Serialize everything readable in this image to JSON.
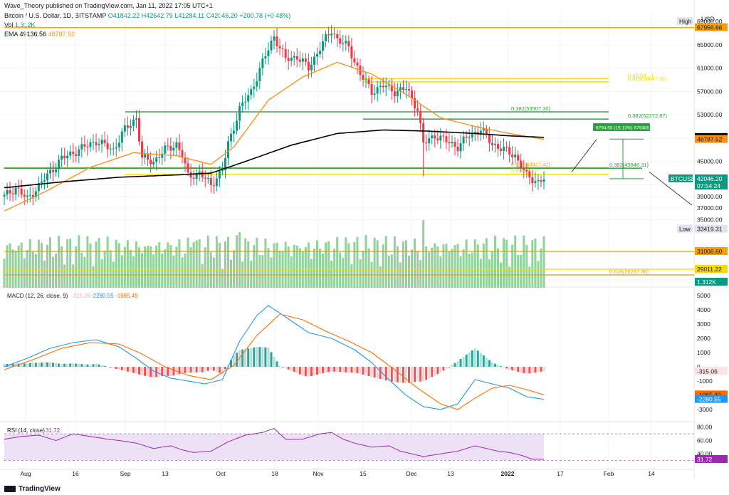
{
  "header": {
    "published": "Wave_Theory published on TradingView.com, Jan 11, 2022 17:05 UTC+1",
    "symbol": "Bitcoin / U.S. Dollar, 1D, BITSTAMP",
    "ohlc": "O41842.22  H42642.79  L41284.11  C42046.20  +200.78 (+0.48%)",
    "vol": "Vol",
    "vol_value": "1.312K",
    "ema": "EMA",
    "ema_a": "49136.56",
    "ema_b": "48787.52"
  },
  "footer": {
    "brand": "TradingView"
  },
  "colors": {
    "up": "#089981",
    "down": "#f23645",
    "ema_fast": "#f7931a",
    "ema_slow": "#000000",
    "fib_green": "#2e9e3e",
    "fib_yellow": "#f5d90a",
    "fib_orange": "#f59f00",
    "vol_up": "#90d29a",
    "vol_down": "#90d29a",
    "macd": "#2196f3",
    "signal": "#ff6d00",
    "rsi": "#9c27b0",
    "rsi_bg": "#ede1f6"
  },
  "chart_data": [
    {
      "type": "candlestick",
      "title": "Bitcoin / U.S. Dollar, 1D, BITSTAMP",
      "currency": "USD",
      "x_ticks": [
        "Aug",
        "16",
        "Sep",
        "13",
        "Oct",
        "18",
        "Nov",
        "15",
        "Dec",
        "13",
        "2022",
        "17",
        "Feb",
        "14"
      ],
      "y_ticks": [
        69000,
        65000,
        61000,
        57000,
        53000,
        49000,
        45000,
        41000,
        39000,
        37000,
        35000
      ],
      "ylim": [
        33000,
        70000
      ],
      "price_path": [
        [
          0,
          39000
        ],
        [
          4,
          40500
        ],
        [
          8,
          38500
        ],
        [
          14,
          42000
        ],
        [
          20,
          45500
        ],
        [
          26,
          47000
        ],
        [
          32,
          48500
        ],
        [
          38,
          47000
        ],
        [
          42,
          50500
        ],
        [
          46,
          52500
        ],
        [
          48,
          45500
        ],
        [
          52,
          45000
        ],
        [
          56,
          47000
        ],
        [
          60,
          48000
        ],
        [
          62,
          46000
        ],
        [
          64,
          42500
        ],
        [
          68,
          43000
        ],
        [
          72,
          41000
        ],
        [
          76,
          43500
        ],
        [
          78,
          48000
        ],
        [
          82,
          54000
        ],
        [
          86,
          57000
        ],
        [
          90,
          62000
        ],
        [
          94,
          66500
        ],
        [
          98,
          62500
        ],
        [
          102,
          63000
        ],
        [
          106,
          61000
        ],
        [
          110,
          64500
        ],
        [
          114,
          67500
        ],
        [
          116,
          66000
        ],
        [
          120,
          64500
        ],
        [
          124,
          60000
        ],
        [
          128,
          57000
        ],
        [
          132,
          58000
        ],
        [
          136,
          57000
        ],
        [
          140,
          57500
        ],
        [
          144,
          54000
        ],
        [
          146,
          48000
        ],
        [
          150,
          49500
        ],
        [
          154,
          48500
        ],
        [
          158,
          47500
        ],
        [
          162,
          49500
        ],
        [
          166,
          50500
        ],
        [
          170,
          48000
        ],
        [
          174,
          47000
        ],
        [
          178,
          46000
        ],
        [
          182,
          42500
        ],
        [
          186,
          41500
        ],
        [
          188,
          42046
        ]
      ],
      "ema_fast_path": [
        [
          0,
          36500
        ],
        [
          15,
          40000
        ],
        [
          30,
          44000
        ],
        [
          45,
          46500
        ],
        [
          60,
          46000
        ],
        [
          72,
          44500
        ],
        [
          80,
          47500
        ],
        [
          92,
          55500
        ],
        [
          104,
          59500
        ],
        [
          116,
          62000
        ],
        [
          128,
          60000
        ],
        [
          140,
          56500
        ],
        [
          152,
          52500
        ],
        [
          164,
          51000
        ],
        [
          176,
          49800
        ],
        [
          188,
          48787.52
        ]
      ],
      "ema_slow_path": [
        [
          0,
          40500
        ],
        [
          20,
          41500
        ],
        [
          40,
          42300
        ],
        [
          60,
          42700
        ],
        [
          72,
          43000
        ],
        [
          84,
          45000
        ],
        [
          100,
          47800
        ],
        [
          116,
          49800
        ],
        [
          132,
          50400
        ],
        [
          148,
          50200
        ],
        [
          164,
          49800
        ],
        [
          176,
          49400
        ],
        [
          188,
          49136.56
        ]
      ],
      "levels": [
        {
          "label": "67956.66",
          "price": 67956.66,
          "color": "#f59f00",
          "text": ""
        },
        {
          "label": "",
          "price": 58647.92,
          "color": "#f5d90a",
          "text": "0.618(58647.92)"
        },
        {
          "label": "",
          "price": 59200,
          "color": "#f5d90a",
          "text": "0.65(59…)"
        },
        {
          "label": "",
          "price": 53507.3,
          "color": "#2e9e3e",
          "text": "0.382(53507.30)"
        },
        {
          "label": "",
          "price": 52272.87,
          "color": "#2e9e3e",
          "text": "0.382(52272.87)"
        },
        {
          "label": "",
          "price": 43927.42,
          "color": "#f59f00",
          "text": "0.618(43927.42)"
        },
        {
          "label": "",
          "price": 43846.31,
          "color": "#2e9e3e",
          "text": "0.382(43846.31)"
        },
        {
          "label": "",
          "price": 42800,
          "color": "#f5d90a",
          "text": "0.65(42…)"
        }
      ],
      "price_labels": [
        {
          "text": "USD",
          "price": 71000,
          "bg": "#ffffff",
          "fg": "#131722"
        },
        {
          "text": "High",
          "price": 69000,
          "bg": "#e0e3eb",
          "fg": "#131722"
        },
        {
          "text": "69000.00",
          "price": 69000,
          "bg": "#ffffff",
          "fg": "#131722"
        },
        {
          "text": "67956.66",
          "price": 67956.66,
          "bg": "#f59f00",
          "fg": "#131722"
        },
        {
          "text": "49136.56",
          "price": 49136.56,
          "bg": "#000000",
          "fg": "#ffffff"
        },
        {
          "text": "48787.52",
          "price": 48787.52,
          "bg": "#f7931a",
          "fg": "#131722"
        },
        {
          "text": "BTCUSD",
          "price": 42046.2,
          "bg": "#089981",
          "fg": "#ffffff"
        },
        {
          "text": "42046.20",
          "price": 42046.2,
          "bg": "#089981",
          "fg": "#ffffff"
        },
        {
          "text": "07:54:24",
          "price": 40800,
          "bg": "#089981",
          "fg": "#ffffff"
        },
        {
          "text": "Low",
          "price": 33419.31,
          "bg": "#e0e3eb",
          "fg": "#131722"
        },
        {
          "text": "33419.31",
          "price": 33419.31,
          "bg": "#e0e3eb",
          "fg": "#131722"
        }
      ],
      "annotations": [
        {
          "text": "6794.65 (16.13%) 679465",
          "x": 170,
          "price": 50700
        }
      ]
    },
    {
      "type": "bar",
      "title": "Vol",
      "price_labels": [
        {
          "text": "31006.60",
          "level": 31006.6,
          "bg": "#f59f00"
        },
        {
          "text": "29011.22",
          "level": 29011.22,
          "bg": "#f5d90a"
        },
        {
          "text": "1.312K",
          "level": 0,
          "bg": "#089981"
        }
      ],
      "level_lines": [
        {
          "level": 31006.6,
          "color": "#f59f00",
          "text": ""
        },
        {
          "level": 29011.22,
          "color": "#f5d90a",
          "text": ""
        },
        {
          "level": 28297.86,
          "color": "#f59f00",
          "text": "0.618(28297.86)"
        }
      ]
    },
    {
      "type": "line",
      "title": "MACD (12, 26, close, 9)",
      "values_text": [
        "-315.06",
        "-2280.55",
        "-1965.49"
      ],
      "y_ticks": [
        5000,
        4000,
        3000,
        2000,
        1000,
        0,
        -1000,
        -2000,
        -3000
      ],
      "ylim": [
        -3500,
        5500
      ],
      "macd_path": [
        [
          0,
          0
        ],
        [
          8,
          600
        ],
        [
          16,
          1300
        ],
        [
          24,
          1700
        ],
        [
          32,
          1900
        ],
        [
          40,
          1400
        ],
        [
          46,
          600
        ],
        [
          52,
          -300
        ],
        [
          58,
          -800
        ],
        [
          64,
          -1000
        ],
        [
          70,
          -1200
        ],
        [
          76,
          -900
        ],
        [
          82,
          1800
        ],
        [
          88,
          3600
        ],
        [
          92,
          4300
        ],
        [
          98,
          3500
        ],
        [
          106,
          2400
        ],
        [
          114,
          2000
        ],
        [
          122,
          1200
        ],
        [
          128,
          300
        ],
        [
          134,
          -900
        ],
        [
          140,
          -2000
        ],
        [
          146,
          -2800
        ],
        [
          152,
          -3000
        ],
        [
          158,
          -2600
        ],
        [
          164,
          -900
        ],
        [
          170,
          -1200
        ],
        [
          176,
          -1500
        ],
        [
          182,
          -2100
        ],
        [
          188,
          -2280.55
        ]
      ],
      "signal_path": [
        [
          0,
          -200
        ],
        [
          10,
          500
        ],
        [
          20,
          1300
        ],
        [
          30,
          1700
        ],
        [
          40,
          1600
        ],
        [
          48,
          900
        ],
        [
          56,
          0
        ],
        [
          64,
          -600
        ],
        [
          72,
          -900
        ],
        [
          80,
          100
        ],
        [
          88,
          2200
        ],
        [
          96,
          3700
        ],
        [
          104,
          3300
        ],
        [
          112,
          2500
        ],
        [
          120,
          1800
        ],
        [
          128,
          1000
        ],
        [
          136,
          -200
        ],
        [
          144,
          -1500
        ],
        [
          152,
          -2600
        ],
        [
          158,
          -3000
        ],
        [
          164,
          -2200
        ],
        [
          170,
          -1500
        ],
        [
          176,
          -1300
        ],
        [
          182,
          -1600
        ],
        [
          188,
          -1965.49
        ]
      ],
      "price_labels": [
        {
          "text": "-315.06",
          "value": -315.06,
          "bg": "#fde2e4",
          "fg": "#131722"
        },
        {
          "text": "-1965.49",
          "value": -1965.49,
          "bg": "#ff6d00",
          "fg": "#131722"
        },
        {
          "text": "-2280.55",
          "value": -2280.55,
          "bg": "#2196f3",
          "fg": "#ffffff"
        }
      ]
    },
    {
      "type": "line",
      "title": "RSI (14, close)",
      "value_text": "31.72",
      "y_ticks": [
        80,
        60,
        40
      ],
      "ylim": [
        20,
        85
      ],
      "band": [
        30,
        70
      ],
      "rsi_path": [
        [
          0,
          62
        ],
        [
          6,
          66
        ],
        [
          12,
          68
        ],
        [
          18,
          60
        ],
        [
          24,
          70
        ],
        [
          30,
          66
        ],
        [
          36,
          62
        ],
        [
          40,
          60
        ],
        [
          46,
          56
        ],
        [
          52,
          48
        ],
        [
          58,
          52
        ],
        [
          62,
          46
        ],
        [
          66,
          42
        ],
        [
          72,
          44
        ],
        [
          78,
          58
        ],
        [
          84,
          68
        ],
        [
          90,
          72
        ],
        [
          94,
          78
        ],
        [
          98,
          62
        ],
        [
          104,
          62
        ],
        [
          110,
          70
        ],
        [
          114,
          72
        ],
        [
          118,
          62
        ],
        [
          122,
          56
        ],
        [
          128,
          50
        ],
        [
          134,
          52
        ],
        [
          138,
          44
        ],
        [
          142,
          40
        ],
        [
          146,
          36
        ],
        [
          152,
          40
        ],
        [
          158,
          44
        ],
        [
          164,
          52
        ],
        [
          168,
          48
        ],
        [
          172,
          44
        ],
        [
          176,
          42
        ],
        [
          180,
          38
        ],
        [
          184,
          32
        ],
        [
          188,
          31.72
        ]
      ],
      "price_labels": [
        {
          "text": "31.72",
          "value": 31.72,
          "bg": "#9c27b0",
          "fg": "#ffffff"
        }
      ]
    }
  ]
}
